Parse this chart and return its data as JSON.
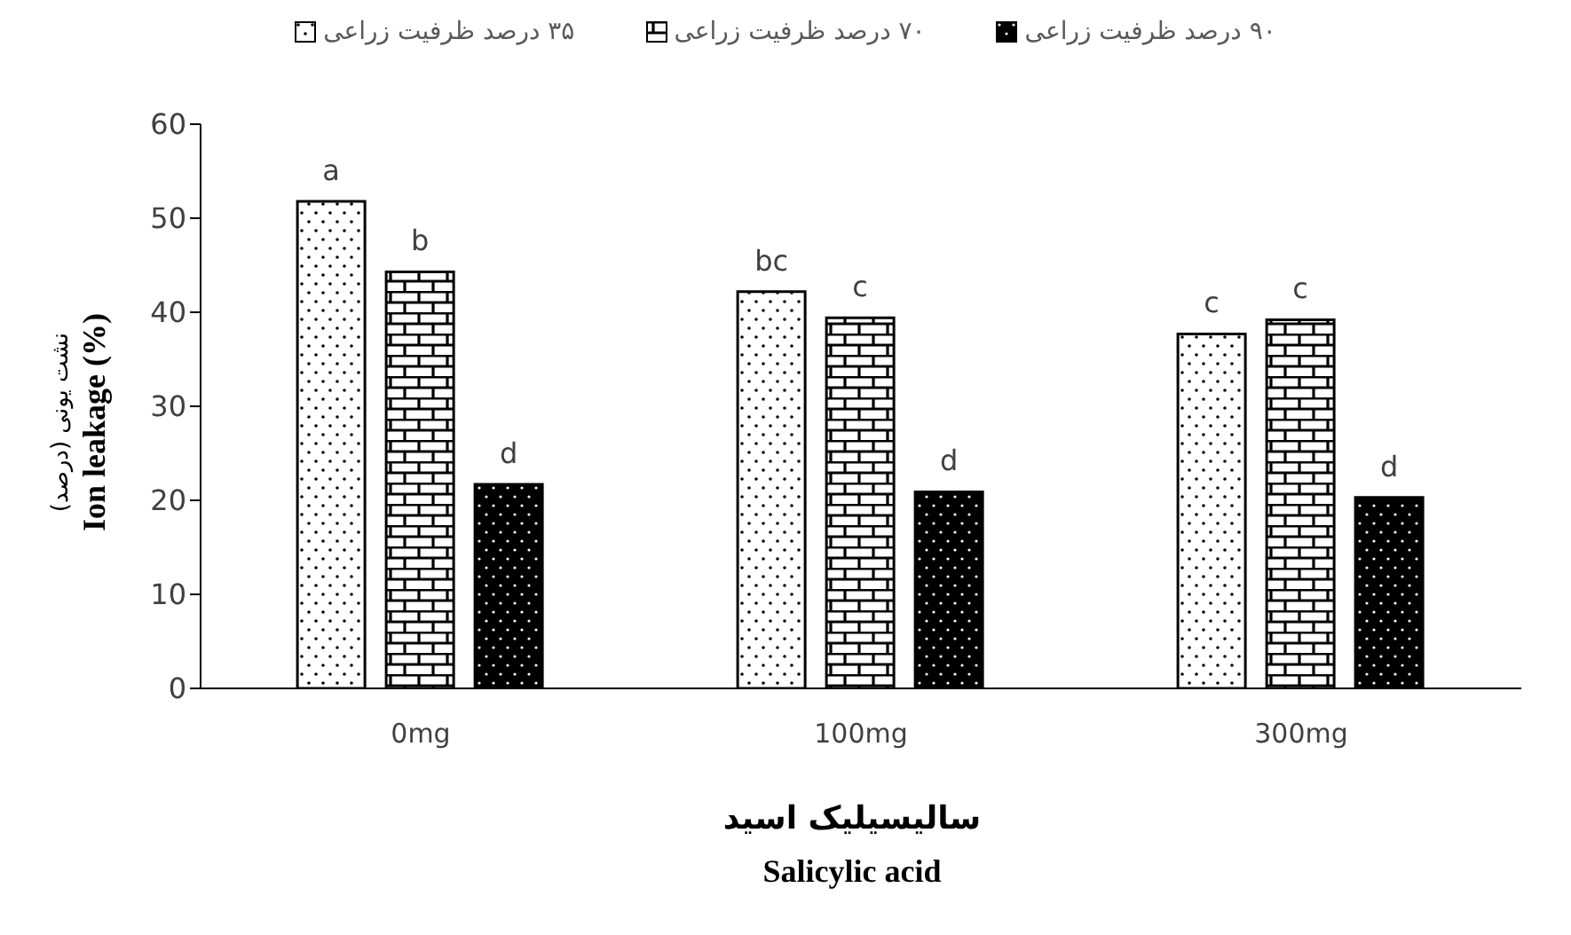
{
  "chart_data": {
    "type": "bar",
    "xlabel": "سالیسیلیک اسید\nSalicylic acid",
    "ylabel": "نشت یونی (درصد)\nIon leakage (%)",
    "categories": [
      "0mg",
      "100mg",
      "300mg"
    ],
    "series": [
      {
        "name": "۳۵ درصد ظرفیت زراعی",
        "color": "#000000",
        "values": [
          51.8,
          42.2,
          37.7
        ]
      },
      {
        "name": "۷۰ درصد ظرفیت زراعی",
        "color": "#000000",
        "values": [
          44.3,
          39.4,
          39.2
        ]
      },
      {
        "name": "۹۰ درصد ظرفیت زراعی",
        "color": "#000000",
        "values": [
          21.7,
          20.9,
          20.3
        ]
      }
    ],
    "ylim": [
      0,
      60
    ],
    "yticks": [
      0,
      10,
      20,
      30,
      40,
      50,
      60
    ],
    "grid": false,
    "legend": "top",
    "annotations": [
      "a",
      "b",
      "d",
      "bc",
      "c",
      "d",
      "c",
      "c",
      "d"
    ]
  }
}
